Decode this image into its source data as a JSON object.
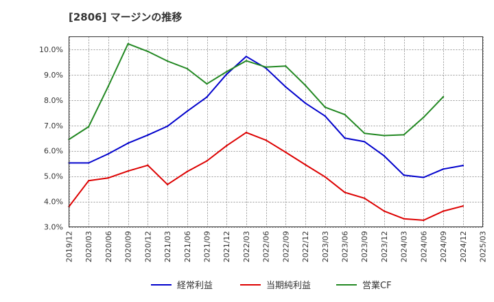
{
  "title": "[2806]  マージンの推移",
  "chart_data": {
    "type": "line",
    "x": [
      "2019/12",
      "2020/03",
      "2020/06",
      "2020/09",
      "2020/12",
      "2021/03",
      "2021/06",
      "2021/09",
      "2021/12",
      "2022/03",
      "2022/06",
      "2022/09",
      "2022/12",
      "2023/03",
      "2023/06",
      "2023/09",
      "2023/12",
      "2024/03",
      "2024/06",
      "2024/09",
      "2024/12",
      "2025/03"
    ],
    "y_ticks": [
      "3.0%",
      "4.0%",
      "5.0%",
      "6.0%",
      "7.0%",
      "8.0%",
      "9.0%",
      "10.0%"
    ],
    "ylim": [
      3.0,
      10.5
    ],
    "grid": true,
    "legend_position": "bottom",
    "series": [
      {
        "name": "経常利益",
        "color": "#0000cc",
        "values": [
          5.52,
          5.52,
          5.88,
          6.3,
          6.62,
          6.97,
          7.56,
          8.12,
          9.02,
          9.72,
          9.26,
          8.52,
          7.88,
          7.37,
          6.5,
          6.36,
          5.8,
          5.04,
          4.95,
          5.28,
          5.42,
          null
        ]
      },
      {
        "name": "当期純利益",
        "color": "#dd0000",
        "values": [
          3.8,
          4.82,
          4.93,
          5.2,
          5.43,
          4.67,
          5.18,
          5.6,
          6.2,
          6.72,
          6.42,
          5.94,
          5.45,
          4.97,
          4.36,
          4.13,
          3.62,
          3.32,
          3.26,
          3.62,
          3.82,
          null
        ]
      },
      {
        "name": "営業CF",
        "color": "#228822",
        "values": [
          6.45,
          6.95,
          8.55,
          10.22,
          9.92,
          9.54,
          9.24,
          8.64,
          9.12,
          9.55,
          9.3,
          9.34,
          8.58,
          7.72,
          7.43,
          6.69,
          6.6,
          6.63,
          7.32,
          8.13,
          null,
          null
        ]
      }
    ]
  }
}
